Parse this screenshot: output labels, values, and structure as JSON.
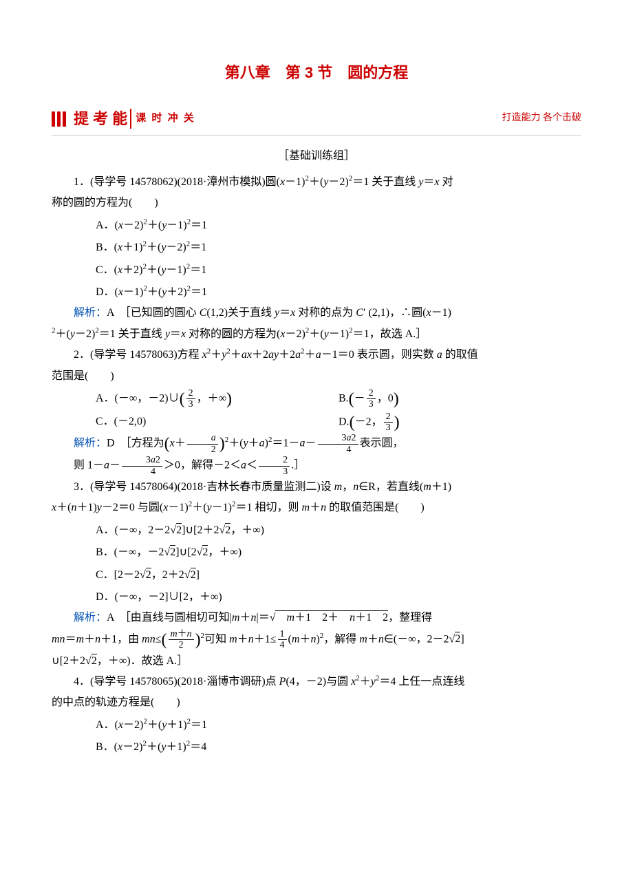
{
  "chapter_title": "第八章　第 3 节　圆的方程",
  "banner": {
    "main": "提 考 能",
    "sub": "课 时 冲 关",
    "right": "打造能力 各个击破"
  },
  "section_label": "［基础训练组］",
  "q1": {
    "stem": "1．(导学号 14578062)(2018·漳州市模拟)圆(x－1)²＋(y－2)²＝1 关于直线 y＝x 对称的圆的方程为(　　)",
    "optA": "A．(x－2)²＋(y－1)²＝1",
    "optB": "B．(x＋1)²＋(y－2)²＝1",
    "optC": "C．(x＋2)²＋(y－1)²＝1",
    "optD": "D．(x－1)²＋(y＋2)²＝1",
    "ans_label": "解析：",
    "ans_body": "A　［已知圆的圆心 C(1,2)关于直线 y＝x 对称的点为 C′ (2,1)，∴圆(x－1)²＋(y－2)²＝1 关于直线 y＝x 对称的圆的方程为(x－2)²＋(y－1)²＝1，故选 A.］"
  },
  "q2": {
    "stem": "2．(导学号 14578063)方程 x²＋y²＋ax＋2ay＋2a²＋a－1＝0 表示圆，则实数 a 的取值范围是(　　)",
    "optA_pre": "A．(－∞，－2)∪",
    "optA_frac_num": "2",
    "optA_frac_den": "3",
    "optA_post": "，＋∞",
    "optB_pre": "B.",
    "optB_frac_num": "2",
    "optB_frac_den": "3",
    "optB_post": "，0",
    "optC": "C．(－2,0)",
    "optD_pre": "D.",
    "optD_frac_num": "2",
    "optD_frac_den": "3",
    "ans_label": "解析：",
    "ans_pre": "D　［方程为",
    "ans_x": "x＋",
    "ans_frac1_num": "a",
    "ans_frac1_den": "2",
    "ans_mid1": "²＋(y＋a)²＝1－a－",
    "ans_frac2_num": "3a2",
    "ans_frac2_den": "4",
    "ans_mid2": "表示圆，",
    "ans_line2_pre": "则 1－a－",
    "ans_line2_mid": "＞0，解得－2＜a＜",
    "ans_frac3_num": "2",
    "ans_frac3_den": "3",
    "ans_line2_post": ".］"
  },
  "q3": {
    "stem": "3．(导学号 14578064)(2018·吉林长春市质量监测二)设 m，n∈R，若直线(m＋1)x＋(n＋1)y－2＝0 与圆(x－1)²＋(y－1)²＝1 相切，则 m＋n 的取值范围是(　　)",
    "optA": "A．(－∞，2－2√2]∪[2＋2√2，＋∞)",
    "optB": "B．(－∞，－2√2]∪[2√2，＋∞)",
    "optC": "C．[2－2√2，2＋2√2]",
    "optD": "D．(－∞，－2]∪[2，＋∞)",
    "ans_label": "解析：",
    "ans_pre": "A　［由直线与圆相切可知|m＋n|＝",
    "ans_sqrt": "　m＋1　2＋　n＋1　2",
    "ans_post1": "，整理得",
    "ans_line2_pre": "mn＝m＋n＋1，由 mn≤",
    "ans_line2_frac_num": "m＋n",
    "ans_line2_frac_den": "2",
    "ans_line2_mid": "²可知 m＋n＋1≤",
    "ans_line2_frac2_num": "1",
    "ans_line2_frac2_den": "4",
    "ans_line2_post": "(m＋n)²，解得 m＋n∈(－∞，2－2√2]∪[2＋2√2，＋∞)．故选 A.］"
  },
  "q4": {
    "stem": "4．(导学号 14578065)(2018·淄博市调研)点 P(4，－2)与圆 x²＋y²＝4 上任一点连线的中点的轨迹方程是(　　)",
    "optA": "A．(x－2)²＋(y＋1)²＝1",
    "optB": "B．(x－2)²＋(y＋1)²＝4"
  },
  "colors": {
    "title_red": "#cc0000",
    "blue": "#0050b3",
    "text": "#000000",
    "background": "#ffffff"
  }
}
